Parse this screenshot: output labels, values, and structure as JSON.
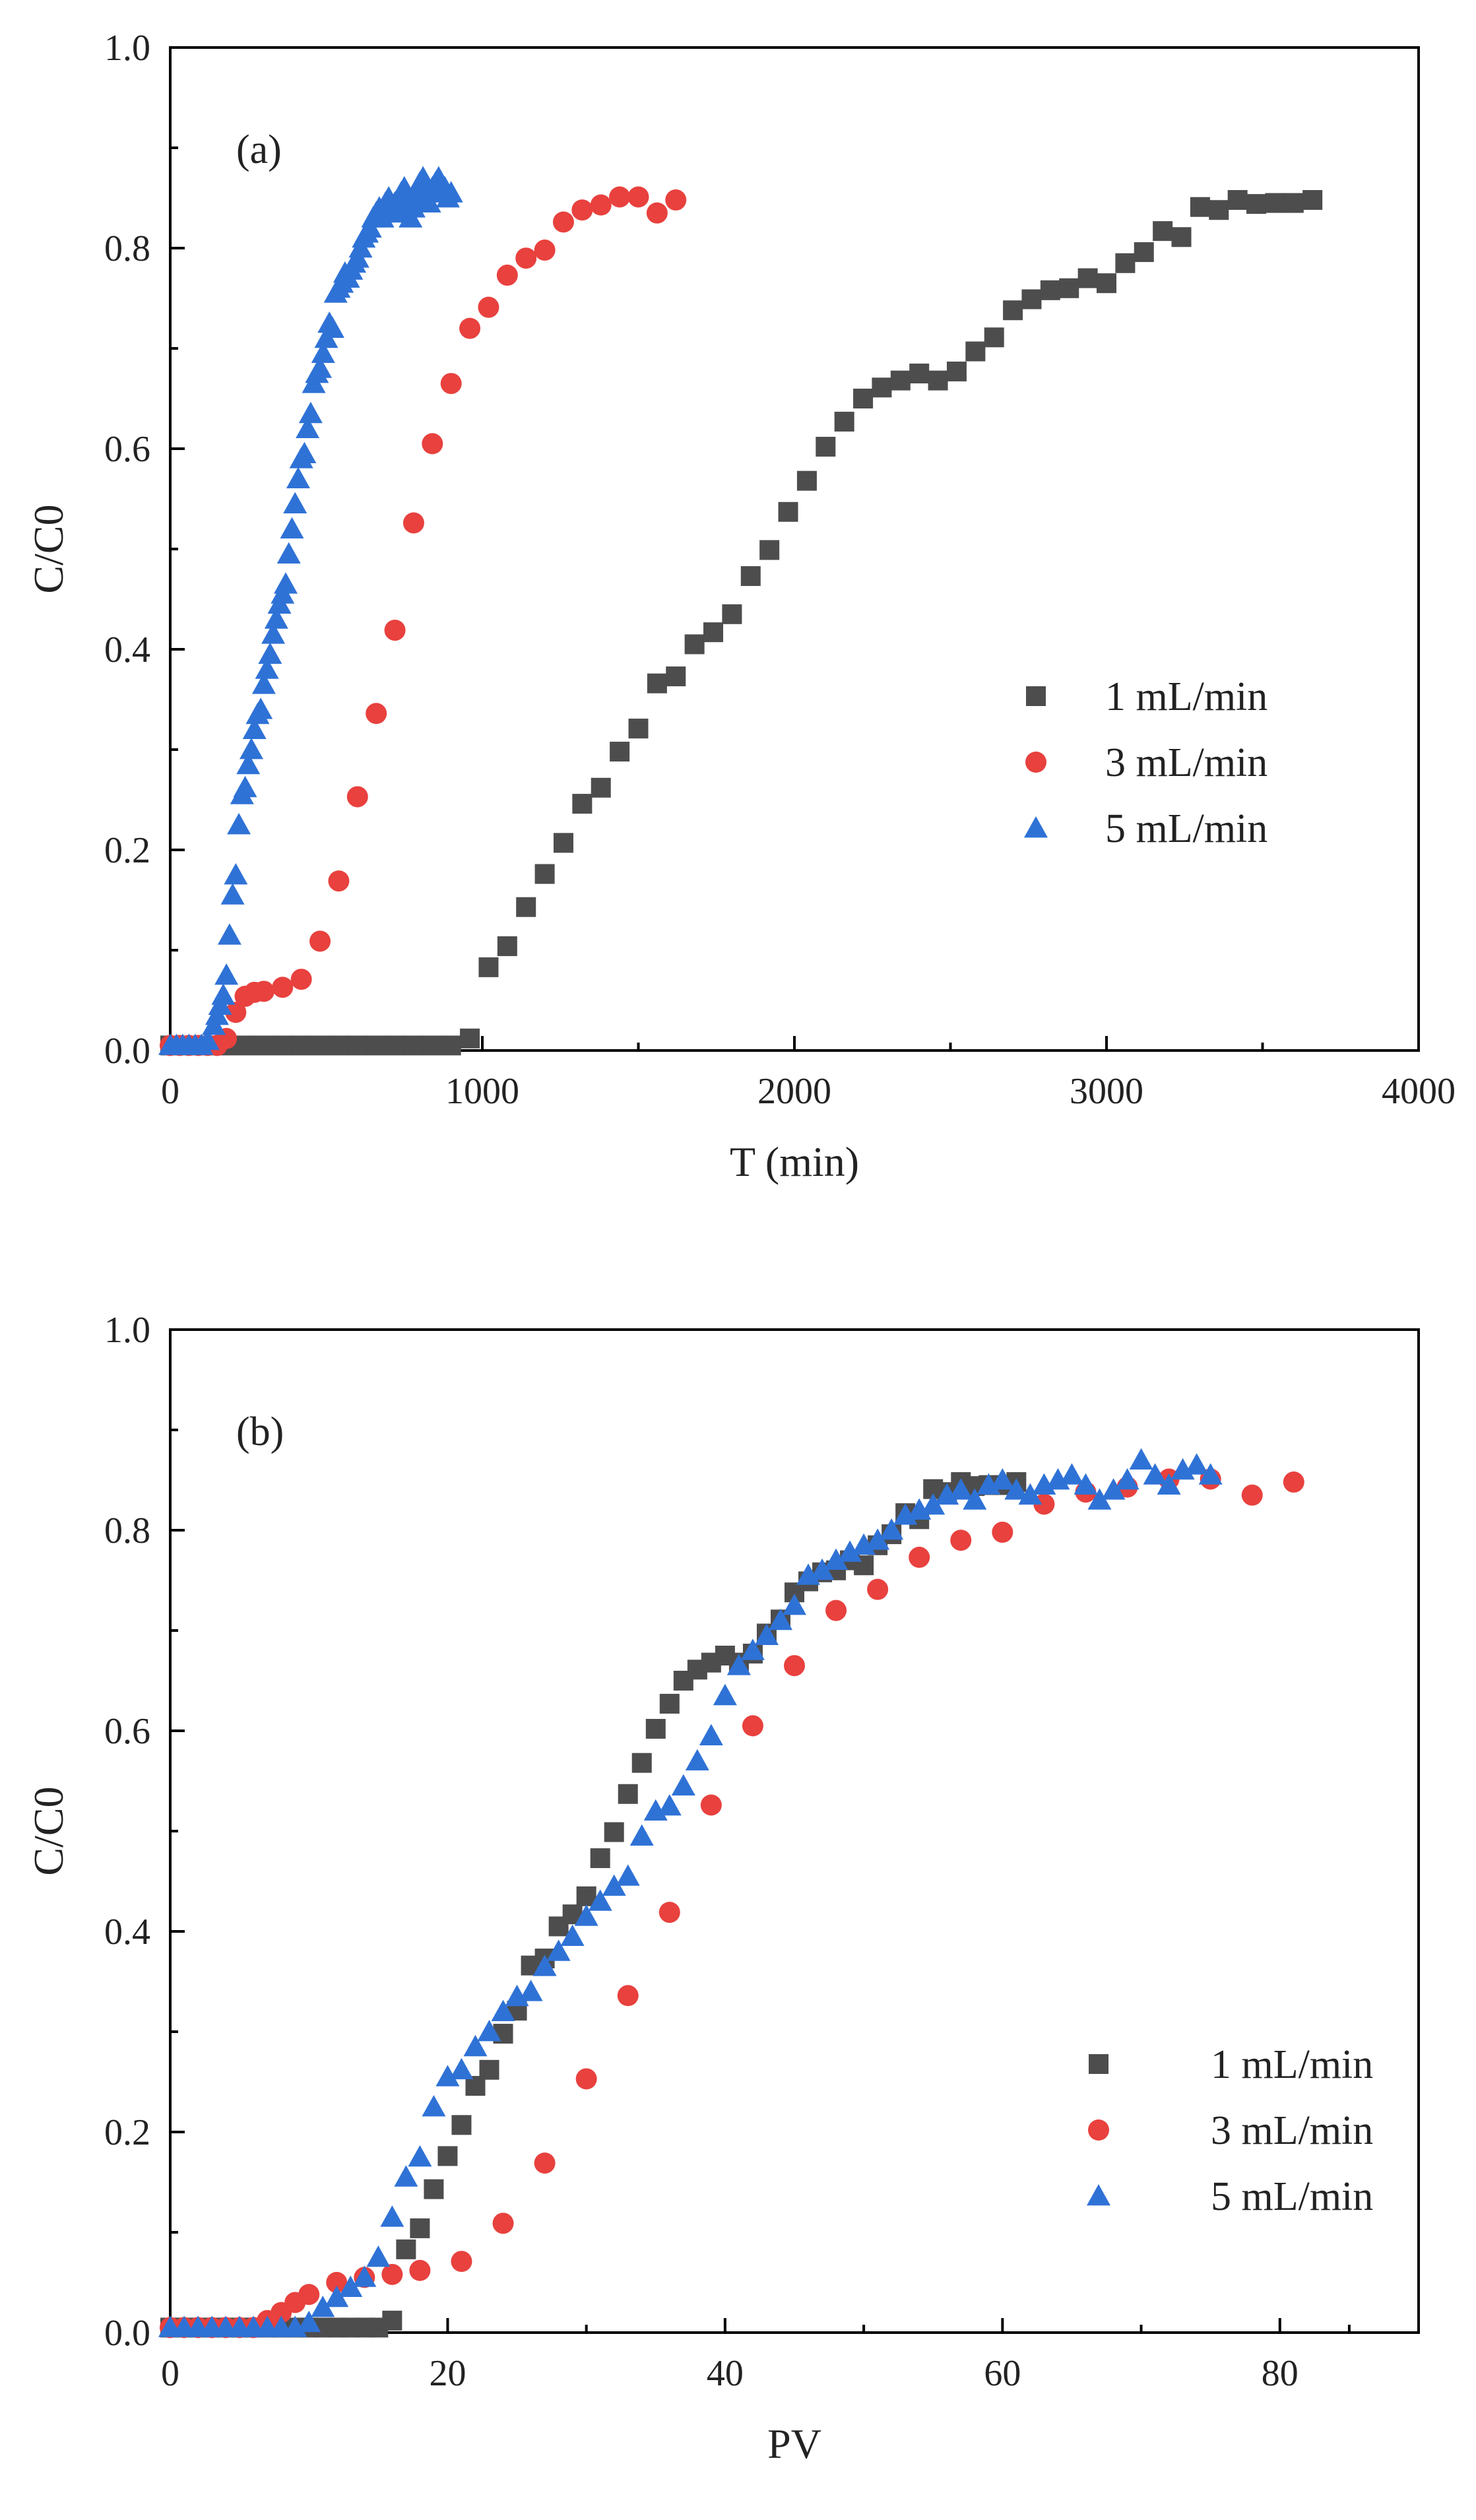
{
  "chart_data": [
    {
      "type": "scatter",
      "panel_label": "(a)",
      "xlabel": "T (min)",
      "ylabel": "C/C0",
      "xlim": [
        0,
        4000
      ],
      "ylim": [
        0,
        1.0
      ],
      "xticks": [
        0,
        1000,
        2000,
        3000,
        4000
      ],
      "xtick_labels": [
        "0",
        "1000",
        "2000",
        "3000",
        "4000"
      ],
      "yticks": [
        0,
        0.2,
        0.4,
        0.6,
        0.8,
        1.0
      ],
      "ytick_labels": [
        "0.0",
        "0.2",
        "0.4",
        "0.6",
        "0.8",
        "1.0"
      ],
      "legend_position": "center-right",
      "series": [
        {
          "name": "1 mL/min",
          "marker": "square",
          "color": "#4d4d4d",
          "x": [
            0,
            60,
            120,
            180,
            240,
            300,
            360,
            420,
            480,
            540,
            600,
            660,
            720,
            780,
            840,
            900,
            960,
            1020,
            1080,
            1140,
            1200,
            1260,
            1320,
            1380,
            1440,
            1500,
            1560,
            1620,
            1680,
            1740,
            1800,
            1860,
            1920,
            1980,
            2040,
            2100,
            2160,
            2220,
            2280,
            2340,
            2400,
            2460,
            2520,
            2580,
            2640,
            2700,
            2760,
            2820,
            2880,
            2940,
            3000,
            3060,
            3120,
            3180,
            3240,
            3300,
            3360,
            3420,
            3480,
            3540,
            3600,
            3660
          ],
          "y": [
            0.005,
            0.005,
            0.005,
            0.005,
            0.005,
            0.005,
            0.005,
            0.005,
            0.005,
            0.005,
            0.005,
            0.005,
            0.005,
            0.005,
            0.005,
            0.005,
            0.012,
            0.083,
            0.104,
            0.143,
            0.176,
            0.207,
            0.246,
            0.262,
            0.298,
            0.321,
            0.366,
            0.373,
            0.405,
            0.417,
            0.435,
            0.473,
            0.499,
            0.537,
            0.568,
            0.602,
            0.627,
            0.65,
            0.661,
            0.668,
            0.675,
            0.668,
            0.677,
            0.697,
            0.711,
            0.738,
            0.749,
            0.758,
            0.76,
            0.77,
            0.765,
            0.785,
            0.796,
            0.817,
            0.811,
            0.841,
            0.838,
            0.848,
            0.844,
            0.845,
            0.845,
            0.848
          ]
        },
        {
          "name": "3 mL/min",
          "marker": "circle",
          "color": "#e8413e",
          "x": [
            0,
            30,
            60,
            90,
            120,
            150,
            180,
            210,
            240,
            270,
            300,
            360,
            420,
            480,
            540,
            600,
            660,
            720,
            780,
            840,
            900,
            960,
            1020,
            1080,
            1140,
            1200,
            1260,
            1320,
            1380,
            1440,
            1500,
            1560,
            1620
          ],
          "y": [
            0.005,
            0.005,
            0.005,
            0.005,
            0.005,
            0.005,
            0.012,
            0.038,
            0.054,
            0.058,
            0.059,
            0.063,
            0.071,
            0.109,
            0.169,
            0.253,
            0.336,
            0.419,
            0.526,
            0.605,
            0.665,
            0.72,
            0.741,
            0.773,
            0.79,
            0.798,
            0.826,
            0.838,
            0.843,
            0.851,
            0.851,
            0.835,
            0.848
          ]
        },
        {
          "name": "5 mL/min",
          "marker": "triangle",
          "color": "#2f72d6",
          "x": [
            0,
            20,
            40,
            60,
            80,
            100,
            120,
            140,
            150,
            160,
            170,
            180,
            190,
            200,
            210,
            220,
            230,
            240,
            250,
            260,
            270,
            280,
            290,
            300,
            310,
            320,
            330,
            340,
            350,
            360,
            370,
            380,
            390,
            400,
            410,
            420,
            430,
            440,
            450,
            460,
            470,
            480,
            490,
            500,
            510,
            520,
            530,
            540,
            550,
            560,
            570,
            580,
            590,
            600,
            610,
            620,
            630,
            640,
            650,
            660,
            670,
            680,
            690,
            700,
            710,
            720,
            730,
            740,
            750,
            760,
            770,
            780,
            790,
            800,
            810,
            820,
            830,
            840,
            850,
            860,
            870,
            880,
            890,
            900
          ],
          "y": [
            0.005,
            0.005,
            0.005,
            0.005,
            0.005,
            0.005,
            0.01,
            0.025,
            0.035,
            0.045,
            0.055,
            0.075,
            0.115,
            0.155,
            0.175,
            0.225,
            0.255,
            0.262,
            0.285,
            0.3,
            0.32,
            0.335,
            0.34,
            0.365,
            0.38,
            0.395,
            0.415,
            0.43,
            0.445,
            0.455,
            0.465,
            0.495,
            0.52,
            0.545,
            0.57,
            0.59,
            0.595,
            0.62,
            0.635,
            0.665,
            0.675,
            0.68,
            0.695,
            0.71,
            0.725,
            0.72,
            0.755,
            0.76,
            0.765,
            0.775,
            0.77,
            0.778,
            0.785,
            0.79,
            0.8,
            0.81,
            0.815,
            0.82,
            0.83,
            0.835,
            0.84,
            0.83,
            0.845,
            0.85,
            0.84,
            0.845,
            0.835,
            0.855,
            0.86,
            0.845,
            0.83,
            0.84,
            0.85,
            0.865,
            0.87,
            0.855,
            0.845,
            0.86,
            0.865,
            0.87,
            0.855,
            0.86,
            0.85,
            0.855
          ]
        }
      ]
    },
    {
      "type": "scatter",
      "panel_label": "(b)",
      "xlabel": "PV",
      "ylabel": "C/C0",
      "xlim": [
        0,
        90
      ],
      "ylim": [
        0,
        1.0
      ],
      "xticks": [
        0,
        20,
        40,
        60,
        80
      ],
      "xtick_labels": [
        "0",
        "20",
        "40",
        "60",
        "80"
      ],
      "yticks": [
        0,
        0.2,
        0.4,
        0.6,
        0.8,
        1.0
      ],
      "ytick_labels": [
        "0.0",
        "0.2",
        "0.4",
        "0.6",
        "0.8",
        "1.0"
      ],
      "legend_position": "bottom-right",
      "series": [
        {
          "name": "1 mL/min",
          "marker": "square",
          "color": "#4d4d4d",
          "x": [
            0,
            1,
            2,
            3,
            4,
            5,
            6,
            7,
            8,
            9,
            10,
            11,
            12,
            13,
            14,
            15,
            16,
            17,
            18,
            19,
            20,
            21,
            22,
            23,
            24,
            25,
            26,
            27,
            28,
            29,
            30,
            31,
            32,
            33,
            34,
            35,
            36,
            37,
            38,
            39,
            40,
            41,
            42,
            43,
            44,
            45,
            46,
            47,
            48,
            49,
            50,
            51,
            52,
            53,
            54,
            55,
            56,
            57,
            58,
            59,
            60,
            61
          ],
          "y": [
            0.005,
            0.005,
            0.005,
            0.005,
            0.005,
            0.005,
            0.005,
            0.005,
            0.005,
            0.005,
            0.005,
            0.005,
            0.005,
            0.005,
            0.005,
            0.005,
            0.012,
            0.083,
            0.104,
            0.143,
            0.176,
            0.207,
            0.246,
            0.262,
            0.298,
            0.321,
            0.366,
            0.373,
            0.405,
            0.417,
            0.435,
            0.473,
            0.499,
            0.537,
            0.568,
            0.602,
            0.627,
            0.65,
            0.661,
            0.668,
            0.675,
            0.668,
            0.677,
            0.697,
            0.711,
            0.738,
            0.749,
            0.758,
            0.76,
            0.77,
            0.765,
            0.785,
            0.796,
            0.817,
            0.811,
            0.841,
            0.838,
            0.848,
            0.844,
            0.845,
            0.845,
            0.848
          ]
        },
        {
          "name": "3 mL/min",
          "marker": "circle",
          "color": "#e8413e",
          "x": [
            0,
            1,
            2,
            3,
            4,
            5,
            6,
            7,
            8,
            9,
            10,
            12,
            14,
            16,
            18,
            21,
            24,
            27,
            30,
            33,
            36,
            39,
            42,
            45,
            48,
            51,
            54,
            57,
            60,
            63,
            66,
            69,
            72,
            75,
            78,
            81
          ],
          "y": [
            0.005,
            0.005,
            0.005,
            0.005,
            0.005,
            0.005,
            0.005,
            0.012,
            0.02,
            0.03,
            0.038,
            0.05,
            0.055,
            0.058,
            0.062,
            0.071,
            0.109,
            0.169,
            0.253,
            0.336,
            0.419,
            0.526,
            0.605,
            0.665,
            0.72,
            0.741,
            0.773,
            0.79,
            0.798,
            0.826,
            0.838,
            0.843,
            0.851,
            0.851,
            0.835,
            0.848
          ]
        },
        {
          "name": "5 mL/min",
          "marker": "triangle",
          "color": "#2f72d6",
          "x": [
            0,
            1,
            2,
            3,
            4,
            5,
            6,
            7,
            8,
            9,
            10,
            11,
            12,
            13,
            14,
            15,
            16,
            17,
            18,
            19,
            20,
            21,
            22,
            23,
            24,
            25,
            26,
            27,
            28,
            29,
            30,
            31,
            32,
            33,
            34,
            35,
            36,
            37,
            38,
            39,
            40,
            41,
            42,
            43,
            44,
            45,
            46,
            47,
            48,
            49,
            50,
            51,
            52,
            53,
            54,
            55,
            56,
            57,
            58,
            59,
            60,
            61,
            62,
            63,
            64,
            65,
            66,
            67,
            68,
            69,
            70,
            71,
            72,
            73,
            74,
            75
          ],
          "y": [
            0.005,
            0.005,
            0.005,
            0.005,
            0.005,
            0.005,
            0.005,
            0.005,
            0.005,
            0.005,
            0.01,
            0.025,
            0.035,
            0.045,
            0.055,
            0.075,
            0.115,
            0.155,
            0.175,
            0.225,
            0.255,
            0.262,
            0.285,
            0.3,
            0.32,
            0.335,
            0.34,
            0.365,
            0.38,
            0.395,
            0.415,
            0.43,
            0.445,
            0.455,
            0.495,
            0.52,
            0.525,
            0.545,
            0.57,
            0.595,
            0.635,
            0.665,
            0.68,
            0.695,
            0.71,
            0.725,
            0.755,
            0.76,
            0.77,
            0.778,
            0.785,
            0.79,
            0.8,
            0.815,
            0.82,
            0.825,
            0.835,
            0.84,
            0.83,
            0.845,
            0.85,
            0.84,
            0.835,
            0.845,
            0.85,
            0.855,
            0.845,
            0.83,
            0.84,
            0.85,
            0.87,
            0.855,
            0.845,
            0.86,
            0.865,
            0.855
          ]
        }
      ]
    }
  ]
}
